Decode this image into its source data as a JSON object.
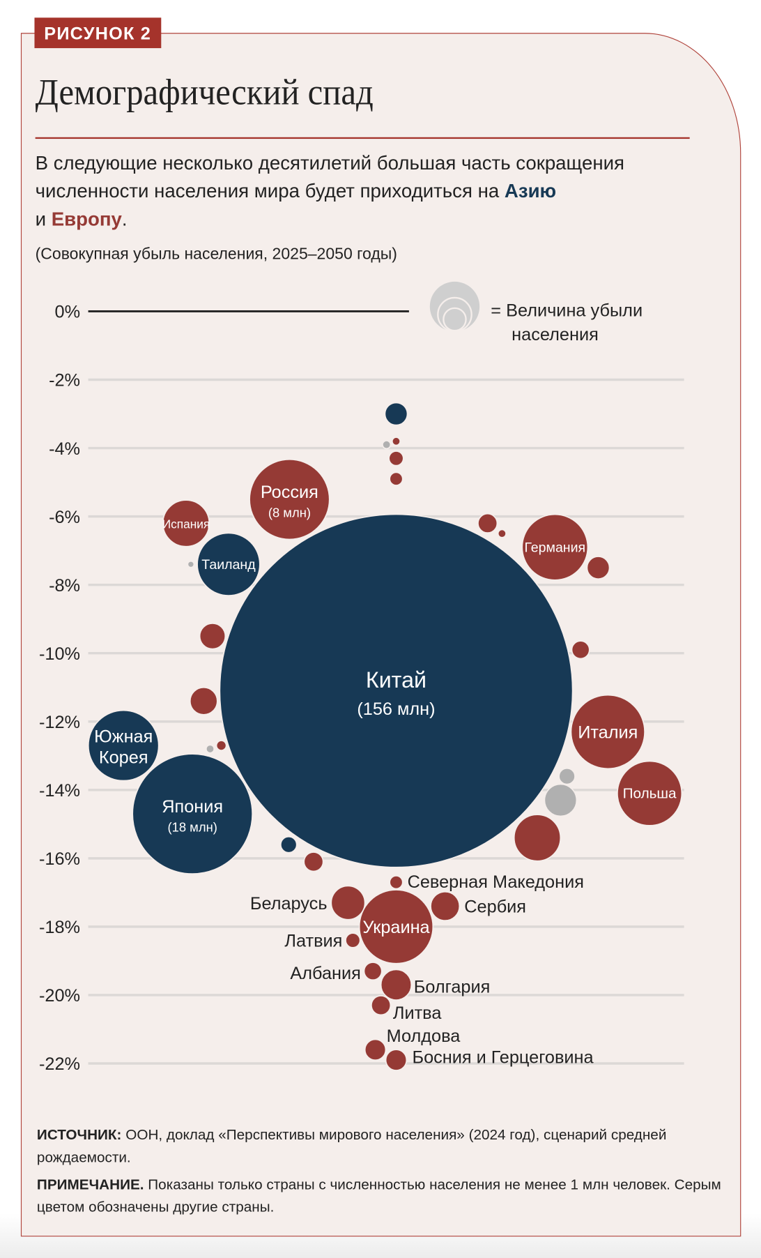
{
  "badge": "РИСУНОК 2",
  "title": "Демографический спад",
  "subtitle": {
    "line1": "В следующие несколько десятилетий большая часть сокращения",
    "line2_pre": "численности населения мира будет приходиться на ",
    "asia": "Азию",
    "line3_pre": "и ",
    "europe": "Европу",
    "line3_post": "."
  },
  "unit_note": "(Совокупная убыль населения, 2025–2050 годы)",
  "legend": {
    "line1": "= Величина убыли",
    "line2": "населения"
  },
  "colors": {
    "asia": "#173955",
    "europe": "#953a35",
    "other": "#b0b0b0",
    "accent": "#a5332b",
    "background": "#f5eeeb"
  },
  "chart_data": {
    "type": "bubble",
    "y_axis": {
      "ticks": [
        "0%",
        "-2%",
        "-4%",
        "-6%",
        "-8%",
        "-10%",
        "-12%",
        "-14%",
        "-16%",
        "-18%",
        "-20%",
        "-22%"
      ],
      "range": [
        -22,
        0
      ],
      "unit": "%"
    },
    "grid": true,
    "size_meaning": "population loss, million",
    "bubbles": [
      {
        "region": "asia",
        "pct": -3.0,
        "loss_mln": 0.63
      },
      {
        "region": "other",
        "pct": -3.9,
        "loss_mln": 0.08
      },
      {
        "region": "europe",
        "pct": -3.8,
        "loss_mln": 0.08
      },
      {
        "region": "europe",
        "pct": -4.3,
        "loss_mln": 0.26
      },
      {
        "region": "europe",
        "pct": -4.9,
        "loss_mln": 0.21
      },
      {
        "name": "Россия",
        "value_label": "(8 млн)",
        "region": "europe",
        "pct": -5.5,
        "loss_mln": 8
      },
      {
        "name": "Испания",
        "region": "europe",
        "pct": -6.2,
        "loss_mln": 2.7
      },
      {
        "name": "Таиланд",
        "region": "asia",
        "pct": -7.4,
        "loss_mln": 4.9
      },
      {
        "region": "other",
        "pct": -7.4,
        "loss_mln": 0.05
      },
      {
        "region": "europe",
        "pct": -6.2,
        "loss_mln": 0.46
      },
      {
        "region": "europe",
        "pct": -6.5,
        "loss_mln": 0.08
      },
      {
        "name": "Германия",
        "region": "europe",
        "pct": -6.9,
        "loss_mln": 5.4
      },
      {
        "region": "europe",
        "pct": -7.5,
        "loss_mln": 0.63
      },
      {
        "region": "europe",
        "pct": -9.5,
        "loss_mln": 0.82
      },
      {
        "region": "europe",
        "pct": -9.9,
        "loss_mln": 0.39
      },
      {
        "name": "Китай",
        "value_label": "(156 млн)",
        "region": "asia",
        "pct": -11.1,
        "loss_mln": 156
      },
      {
        "region": "europe",
        "pct": -11.4,
        "loss_mln": 0.93
      },
      {
        "name": "Южная Корея",
        "region": "asia",
        "pct": -12.7,
        "loss_mln": 6.2
      },
      {
        "region": "other",
        "pct": -12.8,
        "loss_mln": 0.08
      },
      {
        "region": "europe",
        "pct": -12.7,
        "loss_mln": 0.12
      },
      {
        "name": "Италия",
        "region": "europe",
        "pct": -12.3,
        "loss_mln": 6.8
      },
      {
        "name": "Польша",
        "region": "europe",
        "pct": -14.1,
        "loss_mln": 5.2
      },
      {
        "region": "other",
        "pct": -13.6,
        "loss_mln": 0.32
      },
      {
        "region": "other",
        "pct": -14.3,
        "loss_mln": 1.29
      },
      {
        "region": "europe",
        "pct": -15.4,
        "loss_mln": 2.7
      },
      {
        "name": "Япония",
        "value_label": "(18 млн)",
        "region": "asia",
        "pct": -14.7,
        "loss_mln": 18
      },
      {
        "region": "asia",
        "pct": -15.6,
        "loss_mln": 0.32
      },
      {
        "region": "europe",
        "pct": -16.1,
        "loss_mln": 0.46
      },
      {
        "name": "Северная Македония",
        "region": "europe",
        "pct": -16.7,
        "loss_mln": 0.21
      },
      {
        "name": "Беларусь",
        "region": "europe",
        "pct": -17.3,
        "loss_mln": 1.42
      },
      {
        "name": "Сербия",
        "region": "europe",
        "pct": -17.4,
        "loss_mln": 1.04
      },
      {
        "name": "Украина",
        "region": "europe",
        "pct": -18.0,
        "loss_mln": 6.8
      },
      {
        "name": "Латвия",
        "region": "europe",
        "pct": -18.4,
        "loss_mln": 0.26
      },
      {
        "name": "Албания",
        "region": "europe",
        "pct": -19.3,
        "loss_mln": 0.39
      },
      {
        "name": "Болгария",
        "region": "europe",
        "pct": -19.7,
        "loss_mln": 1.16
      },
      {
        "name": "Литва",
        "region": "europe",
        "pct": -20.3,
        "loss_mln": 0.46
      },
      {
        "name": "Молдова",
        "region": "europe",
        "pct": -21.6,
        "loss_mln": 0.54
      },
      {
        "name": "Босния и Герцеговина",
        "region": "europe",
        "pct": -21.9,
        "loss_mln": 0.54
      }
    ]
  },
  "notes": {
    "source_label": "ИСТОЧНИК:",
    "source_text": " ООН, доклад «Перспективы мирового населения» (2024 год), сценарий средней рождаемости.",
    "note_label": "ПРИМЕЧАНИЕ.",
    "note_text": " Показаны только страны с численностью населения не менее 1 млн человек. Серым цветом обозначены другие страны."
  }
}
